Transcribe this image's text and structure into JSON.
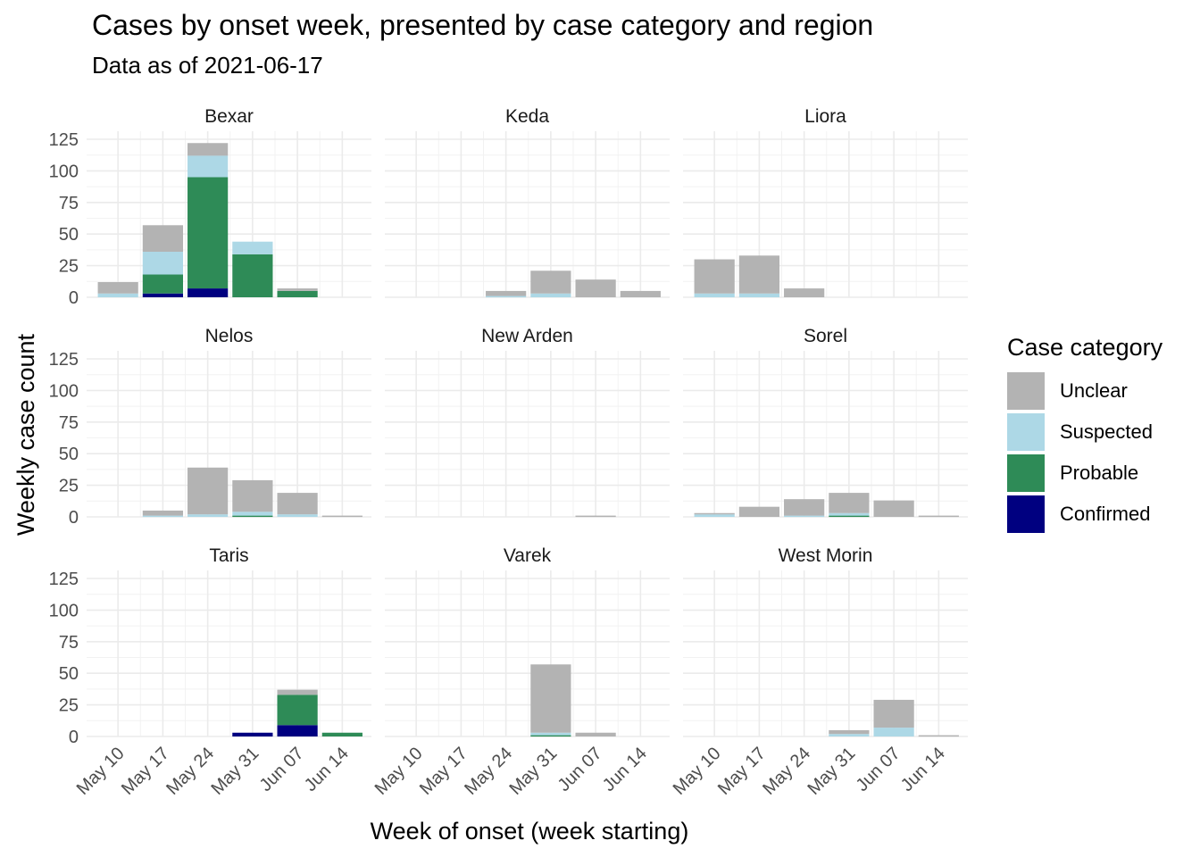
{
  "header": {
    "title": "Cases by onset week, presented by case category and region",
    "subtitle": "Data as of 2021-06-17"
  },
  "legend": {
    "title": "Case category",
    "items": [
      {
        "label": "Unclear",
        "color": "#b3b3b3"
      },
      {
        "label": "Suspected",
        "color": "#add8e6"
      },
      {
        "label": "Probable",
        "color": "#2e8b57"
      },
      {
        "label": "Confirmed",
        "color": "#000080"
      }
    ]
  },
  "chart_data": {
    "type": "bar",
    "stacked": true,
    "faceted": true,
    "xlabel": "Week of onset (week starting)",
    "ylabel": "Weekly case count",
    "ylim": [
      0,
      125
    ],
    "yticks": [
      0,
      25,
      50,
      75,
      100,
      125
    ],
    "categories": [
      "May 10",
      "May 17",
      "May 24",
      "May 31",
      "Jun 07",
      "Jun 14"
    ],
    "series_names": [
      "Confirmed",
      "Probable",
      "Suspected",
      "Unclear"
    ],
    "grid": true,
    "legend_position": "right",
    "facets": [
      {
        "name": "Bexar",
        "confirmed": [
          0,
          3,
          7,
          0,
          0,
          0
        ],
        "probable": [
          0,
          15,
          88,
          34,
          5,
          0
        ],
        "suspected": [
          3,
          18,
          17,
          10,
          0,
          0
        ],
        "unclear": [
          9,
          21,
          10,
          0,
          2,
          0
        ]
      },
      {
        "name": "Keda",
        "confirmed": [
          0,
          0,
          0,
          0,
          0,
          0
        ],
        "probable": [
          0,
          0,
          0,
          0,
          0,
          0
        ],
        "suspected": [
          0,
          0,
          1,
          3,
          0,
          0
        ],
        "unclear": [
          0,
          0,
          4,
          18,
          14,
          5
        ]
      },
      {
        "name": "Liora",
        "confirmed": [
          0,
          0,
          0,
          0,
          0,
          0
        ],
        "probable": [
          0,
          0,
          0,
          0,
          0,
          0
        ],
        "suspected": [
          3,
          3,
          0,
          0,
          0,
          0
        ],
        "unclear": [
          27,
          30,
          7,
          0,
          0,
          0
        ]
      },
      {
        "name": "Nelos",
        "confirmed": [
          0,
          0,
          0,
          0,
          0,
          0
        ],
        "probable": [
          0,
          0,
          0,
          1,
          0,
          0
        ],
        "suspected": [
          0,
          1,
          2,
          3,
          2,
          0
        ],
        "unclear": [
          0,
          4,
          37,
          25,
          17,
          1
        ]
      },
      {
        "name": "New Arden",
        "confirmed": [
          0,
          0,
          0,
          0,
          0,
          0
        ],
        "probable": [
          0,
          0,
          0,
          0,
          0,
          0
        ],
        "suspected": [
          0,
          0,
          0,
          0,
          0,
          0
        ],
        "unclear": [
          0,
          0,
          0,
          0,
          1,
          0
        ]
      },
      {
        "name": "Sorel",
        "confirmed": [
          0,
          0,
          0,
          0,
          0,
          0
        ],
        "probable": [
          0,
          0,
          0,
          1,
          0,
          0
        ],
        "suspected": [
          2,
          0,
          1,
          2,
          0,
          0
        ],
        "unclear": [
          1,
          8,
          13,
          16,
          13,
          1
        ]
      },
      {
        "name": "Taris",
        "confirmed": [
          0,
          0,
          0,
          3,
          9,
          0
        ],
        "probable": [
          0,
          0,
          0,
          0,
          24,
          3
        ],
        "suspected": [
          0,
          0,
          0,
          0,
          0,
          0
        ],
        "unclear": [
          0,
          0,
          0,
          0,
          4,
          0
        ]
      },
      {
        "name": "Varek",
        "confirmed": [
          0,
          0,
          0,
          0,
          0,
          0
        ],
        "probable": [
          0,
          0,
          0,
          1,
          0,
          0
        ],
        "suspected": [
          0,
          0,
          0,
          2,
          0,
          0
        ],
        "unclear": [
          0,
          0,
          0,
          54,
          3,
          0
        ]
      },
      {
        "name": "West Morin",
        "confirmed": [
          0,
          0,
          0,
          0,
          0,
          0
        ],
        "probable": [
          0,
          0,
          0,
          0,
          0,
          0
        ],
        "suspected": [
          0,
          0,
          0,
          2,
          7,
          0
        ],
        "unclear": [
          0,
          0,
          0,
          3,
          22,
          1
        ]
      }
    ]
  }
}
